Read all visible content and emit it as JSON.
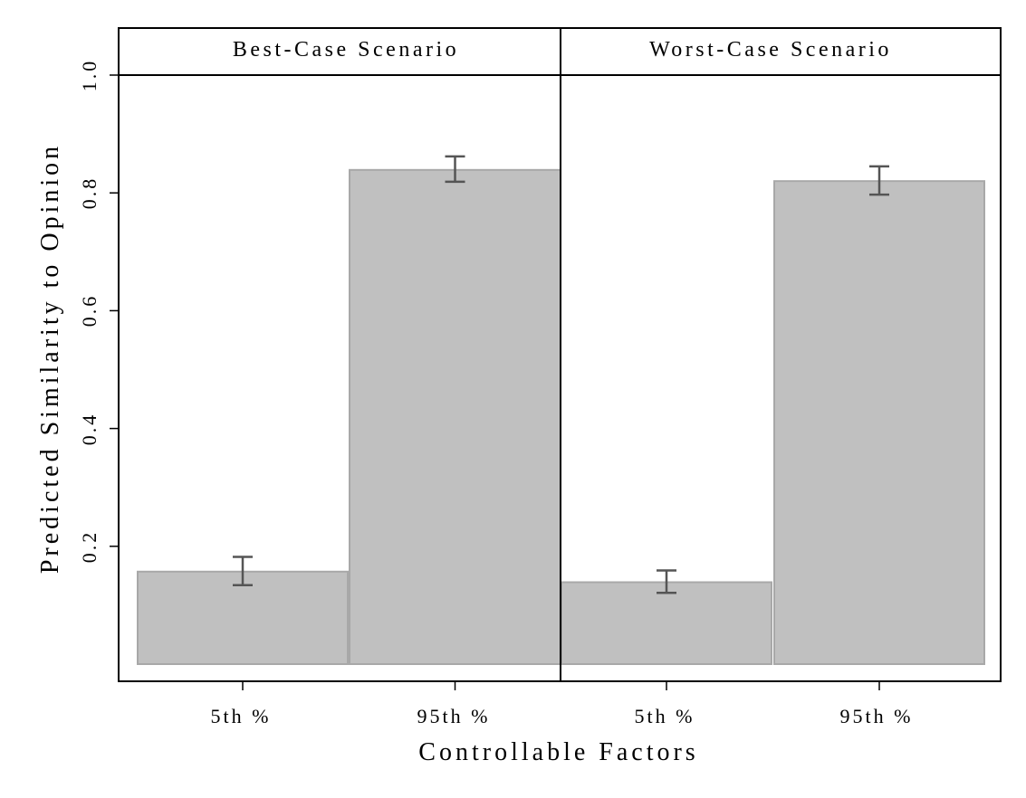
{
  "chart_data": {
    "type": "bar",
    "xlabel": "Controllable Factors",
    "ylabel": "Predicted Similarity to Opinion",
    "ylim": [
      0,
      1.0
    ],
    "yticks": [
      0.2,
      0.4,
      0.6,
      0.8,
      1.0
    ],
    "ytick_labels": [
      "0.2",
      "0.4",
      "0.6",
      "0.8",
      "1.0"
    ],
    "categories": [
      "5th %",
      "95th %"
    ],
    "panels": [
      {
        "title": "Best-Case Scenario",
        "values": [
          0.157,
          0.839
        ],
        "ci_low": [
          0.134,
          0.819
        ],
        "ci_high": [
          0.182,
          0.862
        ]
      },
      {
        "title": "Worst-Case Scenario",
        "values": [
          0.139,
          0.82
        ],
        "ci_low": [
          0.121,
          0.797
        ],
        "ci_high": [
          0.159,
          0.845
        ]
      }
    ],
    "colors": {
      "bar_fill": "#c0c0c0",
      "bar_stroke": "#a8a8a8",
      "error_bar": "#555555",
      "frame": "#000000"
    }
  }
}
